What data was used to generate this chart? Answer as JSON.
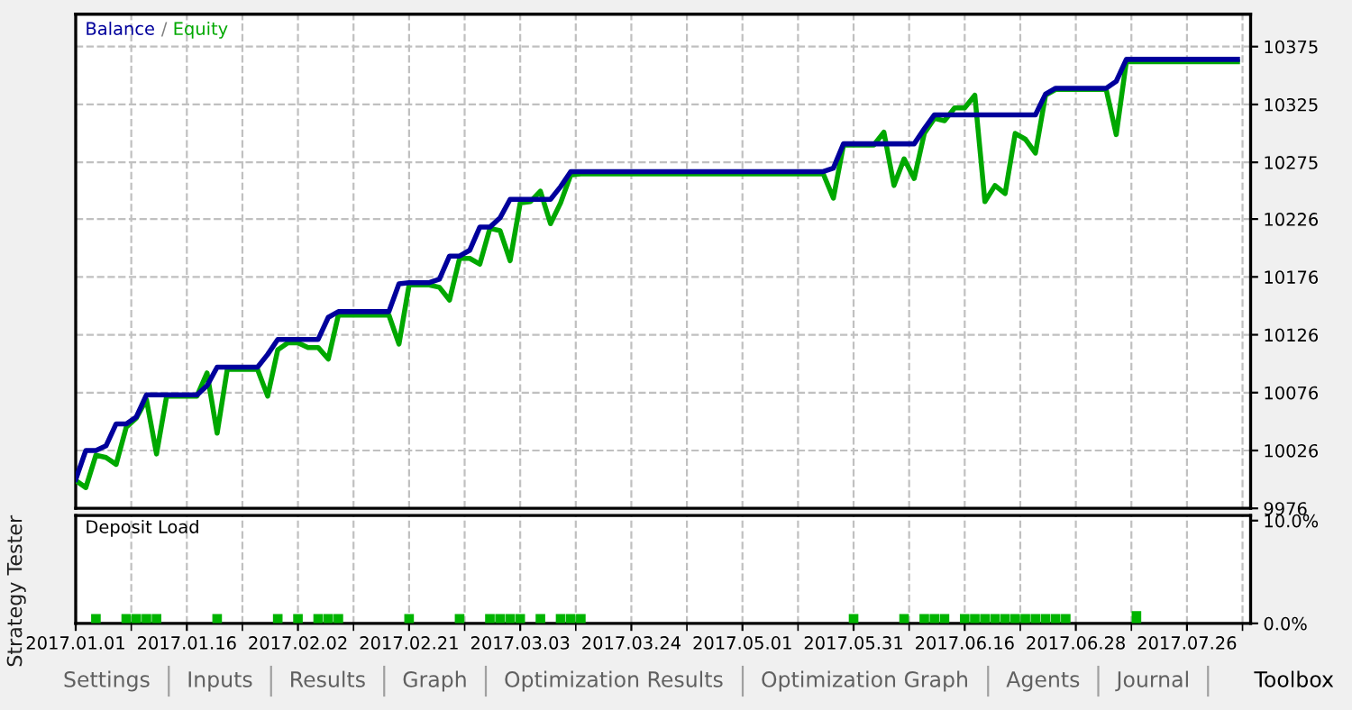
{
  "chart_data": [
    {
      "type": "line",
      "legend": "top left",
      "tick_labels": "y",
      "grid": true,
      "annotations": [
        "/"
      ],
      "categories": [
        "2017.01.01",
        null,
        null,
        null,
        null,
        null,
        null,
        null,
        null,
        null,
        null,
        "2017.01.16",
        null,
        null,
        null,
        null,
        null,
        null,
        null,
        null,
        null,
        null,
        "2017.02.02",
        null,
        null,
        null,
        null,
        null,
        null,
        null,
        null,
        null,
        null,
        "2017.02.21",
        null,
        null,
        null,
        null,
        null,
        null,
        null,
        null,
        null,
        null,
        "2017.03.03",
        null,
        null,
        null,
        null,
        null,
        null,
        null,
        null,
        null,
        null,
        "2017.03.24",
        null,
        null,
        null,
        null,
        null,
        null,
        null,
        null,
        null,
        null,
        "2017.05.01",
        null,
        null,
        null,
        null,
        null,
        null,
        null,
        null,
        null,
        null,
        "2017.05.31",
        null,
        null,
        null,
        null,
        null,
        null,
        null,
        null,
        null,
        null,
        "2017.06.16",
        null,
        null,
        null,
        null,
        null,
        null,
        null,
        null,
        null,
        null,
        "2017.06.28",
        null,
        null,
        null,
        null,
        null,
        null,
        null,
        null,
        null,
        null,
        "2017.07.26",
        null,
        null,
        null,
        null,
        null,
        null
      ],
      "series": [
        {
          "name": "Balance",
          "color": "#00009c",
          "values": [
            10001,
            10026,
            10026,
            10030,
            10049,
            10049,
            10055,
            10074,
            10074,
            10074,
            10074,
            10074,
            10074,
            10082,
            10098,
            10098,
            10098,
            10098,
            10098,
            10109,
            10122,
            10122,
            10122,
            10122,
            10122,
            10141,
            10146,
            10146,
            10146,
            10146,
            10146,
            10146,
            10170,
            10171,
            10171,
            10171,
            10174,
            10194,
            10194,
            10199,
            10219,
            10219,
            10227,
            10243,
            10243,
            10243,
            10243,
            10243,
            10254,
            10267,
            10267,
            10267,
            10267,
            10267,
            10267,
            10267,
            10267,
            10267,
            10267,
            10267,
            10267,
            10267,
            10267,
            10267,
            10267,
            10267,
            10267,
            10267,
            10267,
            10267,
            10267,
            10267,
            10267,
            10267,
            10267,
            10270,
            10291,
            10291,
            10291,
            10291,
            10291,
            10291,
            10291,
            10291,
            10304,
            10316,
            10316,
            10316,
            10316,
            10316,
            10316,
            10316,
            10316,
            10316,
            10316,
            10316,
            10334,
            10339,
            10339,
            10339,
            10339,
            10339,
            10339,
            10345,
            10364,
            10364,
            10364,
            10364,
            10364,
            10364,
            10364,
            10364,
            10364,
            10364,
            10364,
            10364,
            null
          ]
        },
        {
          "name": "Equity",
          "color": "#00a800",
          "values": [
            10000,
            9994,
            10022,
            10020,
            10014,
            10046,
            10054,
            10070,
            10023,
            10073,
            10073,
            10073,
            10073,
            10093,
            10041,
            10096,
            10096,
            10096,
            10096,
            10073,
            10113,
            10119,
            10119,
            10115,
            10115,
            10105,
            10143,
            10143,
            10143,
            10143,
            10143,
            10143,
            10118,
            10169,
            10169,
            10169,
            10167,
            10156,
            10192,
            10192,
            10187,
            10218,
            10216,
            10190,
            10240,
            10241,
            10250,
            10222,
            10240,
            10264,
            10265,
            10265,
            10265,
            10265,
            10265,
            10265,
            10265,
            10265,
            10265,
            10265,
            10265,
            10265,
            10265,
            10265,
            10265,
            10265,
            10265,
            10265,
            10265,
            10265,
            10265,
            10265,
            10265,
            10265,
            10265,
            10244,
            10290,
            10290,
            10290,
            10290,
            10301,
            10255,
            10278,
            10261,
            10300,
            10313,
            10311,
            10322,
            10322,
            10333,
            10241,
            10255,
            10248,
            10300,
            10295,
            10283,
            10333,
            10338,
            10338,
            10338,
            10338,
            10338,
            10338,
            10299,
            10362,
            10362,
            10362,
            10362,
            10362,
            10362,
            10362,
            10362,
            10362,
            10362,
            10362,
            10362,
            null
          ]
        }
      ],
      "ylim": [
        9976,
        10403
      ],
      "yticks": [
        9976,
        10026,
        10076,
        10126,
        10176,
        10226,
        10275,
        10325,
        10375
      ]
    },
    {
      "type": "bar",
      "title": "Deposit Load",
      "color": "#00b400",
      "grid": "x",
      "categories": [
        "2017.01.01",
        null,
        null,
        null,
        null,
        null,
        null,
        null,
        null,
        null,
        null,
        "2017.01.16",
        null,
        null,
        null,
        null,
        null,
        null,
        null,
        null,
        null,
        null,
        "2017.02.02",
        null,
        null,
        null,
        null,
        null,
        null,
        null,
        null,
        null,
        null,
        "2017.02.21",
        null,
        null,
        null,
        null,
        null,
        null,
        null,
        null,
        null,
        null,
        "2017.03.03",
        null,
        null,
        null,
        null,
        null,
        null,
        null,
        null,
        null,
        null,
        "2017.03.24",
        null,
        null,
        null,
        null,
        null,
        null,
        null,
        null,
        null,
        null,
        "2017.05.01",
        null,
        null,
        null,
        null,
        null,
        null,
        null,
        null,
        null,
        null,
        "2017.05.31",
        null,
        null,
        null,
        null,
        null,
        null,
        null,
        null,
        null,
        null,
        "2017.06.16",
        null,
        null,
        null,
        null,
        null,
        null,
        null,
        null,
        null,
        null,
        "2017.06.28",
        null,
        null,
        null,
        null,
        null,
        null,
        null,
        null,
        null,
        null,
        "2017.07.26",
        null,
        null,
        null,
        null,
        null,
        null
      ],
      "values": [
        null,
        null,
        0.9,
        null,
        null,
        0.9,
        0.9,
        0.9,
        0.9,
        null,
        null,
        null,
        null,
        null,
        0.9,
        null,
        null,
        null,
        null,
        null,
        0.9,
        null,
        0.9,
        null,
        0.9,
        0.9,
        0.9,
        null,
        null,
        null,
        null,
        null,
        null,
        0.9,
        null,
        null,
        null,
        null,
        0.9,
        null,
        null,
        0.9,
        0.9,
        0.9,
        0.9,
        null,
        0.9,
        null,
        0.9,
        0.9,
        0.9,
        null,
        null,
        null,
        null,
        null,
        null,
        null,
        null,
        null,
        null,
        null,
        null,
        null,
        null,
        null,
        null,
        null,
        null,
        null,
        null,
        null,
        null,
        null,
        null,
        null,
        null,
        0.9,
        null,
        null,
        null,
        null,
        0.9,
        null,
        0.9,
        0.9,
        0.9,
        null,
        0.9,
        0.9,
        0.9,
        0.9,
        0.9,
        0.9,
        0.9,
        0.9,
        0.9,
        0.9,
        0.9,
        null,
        null,
        null,
        null,
        null,
        null,
        1.2,
        null,
        null,
        null,
        null,
        null,
        null,
        null,
        null,
        null,
        null,
        null
      ],
      "ylim": [
        0,
        10.5
      ],
      "yticks": [
        {
          "value": 0,
          "label": "0.0%"
        },
        {
          "value": 10,
          "label": "10.0%"
        }
      ]
    },
    {
      "type": "other",
      "title": "Strategy Tester",
      "annotations": [
        "Settings",
        "Inputs",
        "Results",
        "Graph",
        "Optimization Results",
        "Optimization Graph",
        "Agents",
        "Journal",
        "Toolbox"
      ]
    }
  ]
}
